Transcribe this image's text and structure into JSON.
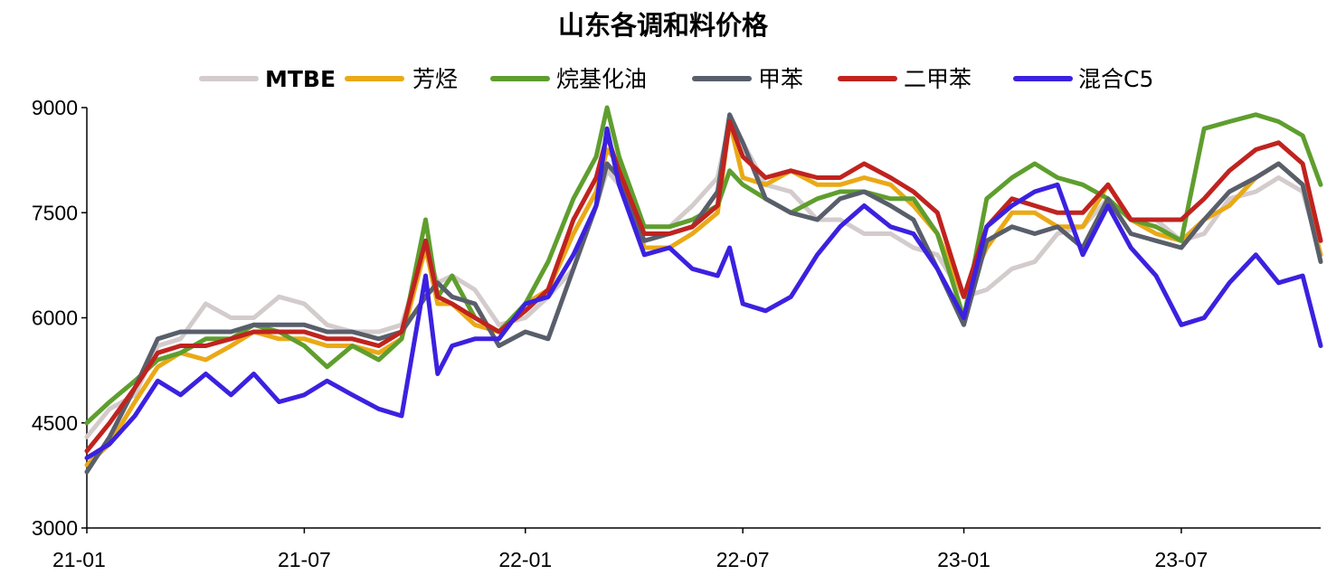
{
  "chart_data": {
    "type": "line",
    "title": "山东各调和料价格",
    "xlabel": "",
    "ylabel": "",
    "ylim": [
      3000,
      9000
    ],
    "yticks": [
      3000,
      4500,
      6000,
      7500,
      9000
    ],
    "xticks": [
      "21-01",
      "21-07",
      "22-01",
      "22-07",
      "23-01",
      "23-07"
    ],
    "xtick_dates": [
      "2021-01-01",
      "2021-07-01",
      "2022-01-01",
      "2022-07-01",
      "2023-01-01",
      "2023-07-01"
    ],
    "x": [
      "2021-01-01",
      "2021-01-20",
      "2021-02-10",
      "2021-03-01",
      "2021-03-20",
      "2021-04-10",
      "2021-05-01",
      "2021-05-20",
      "2021-06-10",
      "2021-07-01",
      "2021-07-20",
      "2021-08-10",
      "2021-09-01",
      "2021-09-20",
      "2021-10-10",
      "2021-10-20",
      "2021-11-01",
      "2021-11-20",
      "2021-12-10",
      "2022-01-01",
      "2022-01-20",
      "2022-02-10",
      "2022-03-01",
      "2022-03-10",
      "2022-03-20",
      "2022-04-10",
      "2022-05-01",
      "2022-05-20",
      "2022-06-10",
      "2022-06-20",
      "2022-07-01",
      "2022-07-20",
      "2022-08-10",
      "2022-09-01",
      "2022-09-20",
      "2022-10-10",
      "2022-11-01",
      "2022-11-20",
      "2022-12-10",
      "2023-01-01",
      "2023-01-20",
      "2023-02-10",
      "2023-03-01",
      "2023-03-20",
      "2023-04-10",
      "2023-05-01",
      "2023-05-20",
      "2023-06-10",
      "2023-07-01",
      "2023-07-20",
      "2023-08-10",
      "2023-09-01",
      "2023-09-20",
      "2023-10-10",
      "2023-10-25"
    ],
    "series": [
      {
        "name": "MTBE",
        "color": "#d3cbcc",
        "values": [
          4300,
          4700,
          4900,
          5600,
          5700,
          6200,
          6000,
          6000,
          6300,
          6200,
          5900,
          5800,
          5800,
          5900,
          7000,
          6500,
          6600,
          6400,
          5900,
          6000,
          6300,
          6700,
          7600,
          8100,
          7900,
          7300,
          7300,
          7600,
          8000,
          8800,
          8500,
          7900,
          7800,
          7400,
          7400,
          7200,
          7200,
          7000,
          6900,
          6300,
          6400,
          6700,
          6800,
          7200,
          7300,
          7700,
          7400,
          7400,
          7100,
          7200,
          7700,
          7800,
          8000,
          7800,
          6900
        ]
      },
      {
        "name": "芳烃",
        "color": "#eaa916",
        "values": [
          3900,
          4200,
          4800,
          5300,
          5500,
          5400,
          5600,
          5800,
          5700,
          5700,
          5600,
          5600,
          5500,
          5700,
          7000,
          6200,
          6200,
          5900,
          5800,
          6200,
          6400,
          7200,
          7800,
          8400,
          8200,
          7000,
          7000,
          7200,
          7500,
          8800,
          8000,
          7900,
          8100,
          7900,
          7900,
          8000,
          7900,
          7600,
          7200,
          6300,
          7000,
          7500,
          7500,
          7300,
          7300,
          7900,
          7400,
          7200,
          7100,
          7400,
          7600,
          8000,
          8200,
          7900,
          6900
        ]
      },
      {
        "name": "烷基化油",
        "color": "#5f9e2e",
        "values": [
          4500,
          4800,
          5100,
          5400,
          5500,
          5700,
          5700,
          5900,
          5800,
          5600,
          5300,
          5600,
          5400,
          5700,
          7400,
          6300,
          6600,
          6000,
          5800,
          6200,
          6800,
          7700,
          8300,
          9000,
          8300,
          7300,
          7300,
          7400,
          7600,
          8100,
          7900,
          7700,
          7500,
          7700,
          7800,
          7800,
          7700,
          7700,
          7200,
          6000,
          7700,
          8000,
          8200,
          8000,
          7900,
          7700,
          7400,
          7300,
          7100,
          8700,
          8800,
          8900,
          8800,
          8600,
          7900
        ]
      },
      {
        "name": "甲苯",
        "color": "#595e6b",
        "values": [
          3800,
          4300,
          5000,
          5700,
          5800,
          5800,
          5800,
          5900,
          5900,
          5900,
          5800,
          5800,
          5700,
          5800,
          6300,
          6500,
          6300,
          6200,
          5600,
          5800,
          5700,
          6700,
          7600,
          8200,
          8000,
          7100,
          7200,
          7300,
          7800,
          8900,
          8500,
          7700,
          7500,
          7400,
          7700,
          7800,
          7600,
          7400,
          6700,
          5900,
          7100,
          7300,
          7200,
          7300,
          7000,
          7700,
          7200,
          7100,
          7000,
          7400,
          7800,
          8000,
          8200,
          7900,
          6800
        ]
      },
      {
        "name": "二甲苯",
        "color": "#c0231f",
        "values": [
          4100,
          4500,
          5000,
          5500,
          5600,
          5600,
          5700,
          5800,
          5800,
          5800,
          5700,
          5700,
          5600,
          5800,
          7100,
          6300,
          6200,
          6000,
          5800,
          6100,
          6400,
          7400,
          8000,
          8600,
          8100,
          7200,
          7200,
          7300,
          7600,
          8800,
          8300,
          8000,
          8100,
          8000,
          8000,
          8200,
          8000,
          7800,
          7500,
          6300,
          7300,
          7700,
          7600,
          7500,
          7500,
          7900,
          7400,
          7400,
          7400,
          7700,
          8100,
          8400,
          8500,
          8200,
          7100
        ]
      },
      {
        "name": "混合C5",
        "color": "#3b21e0",
        "values": [
          4000,
          4200,
          4600,
          5100,
          4900,
          5200,
          4900,
          5200,
          4800,
          4900,
          5100,
          4900,
          4700,
          4600,
          6600,
          5200,
          5600,
          5700,
          5700,
          6200,
          6300,
          6900,
          7600,
          8700,
          7900,
          6900,
          7000,
          6700,
          6600,
          7000,
          6200,
          6100,
          6300,
          6900,
          7300,
          7600,
          7300,
          7200,
          6700,
          6000,
          7300,
          7600,
          7800,
          7900,
          6900,
          7600,
          7000,
          6600,
          5900,
          6000,
          6500,
          6900,
          6500,
          6600,
          5600
        ]
      }
    ],
    "legend_position": "top",
    "grid": false
  }
}
